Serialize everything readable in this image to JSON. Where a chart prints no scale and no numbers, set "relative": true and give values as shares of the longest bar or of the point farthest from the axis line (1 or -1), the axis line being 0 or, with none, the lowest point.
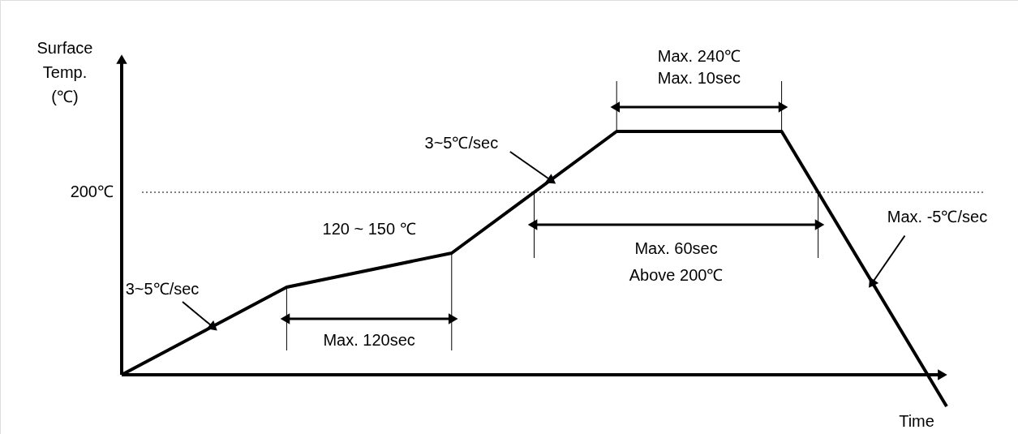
{
  "chart_data": {
    "type": "line",
    "relative": true,
    "xlabel": "Time",
    "ylabel": "Surface Temp. (℃)",
    "categories": [
      null,
      null,
      null,
      null,
      null,
      null
    ],
    "series": [
      {
        "color": "#000000",
        "values": [
          0,
          0.36,
          0.5,
          1,
          1,
          -0.13
        ]
      }
    ],
    "marker": "none",
    "line_style": "solid",
    "ref_lines": [
      {
        "axis": "y",
        "value": 0.75,
        "label": "200℃",
        "color": "#000000",
        "line_style": "dotted"
      }
    ],
    "annotations": [
      "3~5℃/sec",
      "120 ~ 150 ℃",
      "Max. 120sec",
      "3~5℃/sec",
      "Max. 240℃",
      "Max. 10sec",
      "Max. 60sec",
      "Above 200℃",
      "Max. -5℃/sec"
    ]
  }
}
